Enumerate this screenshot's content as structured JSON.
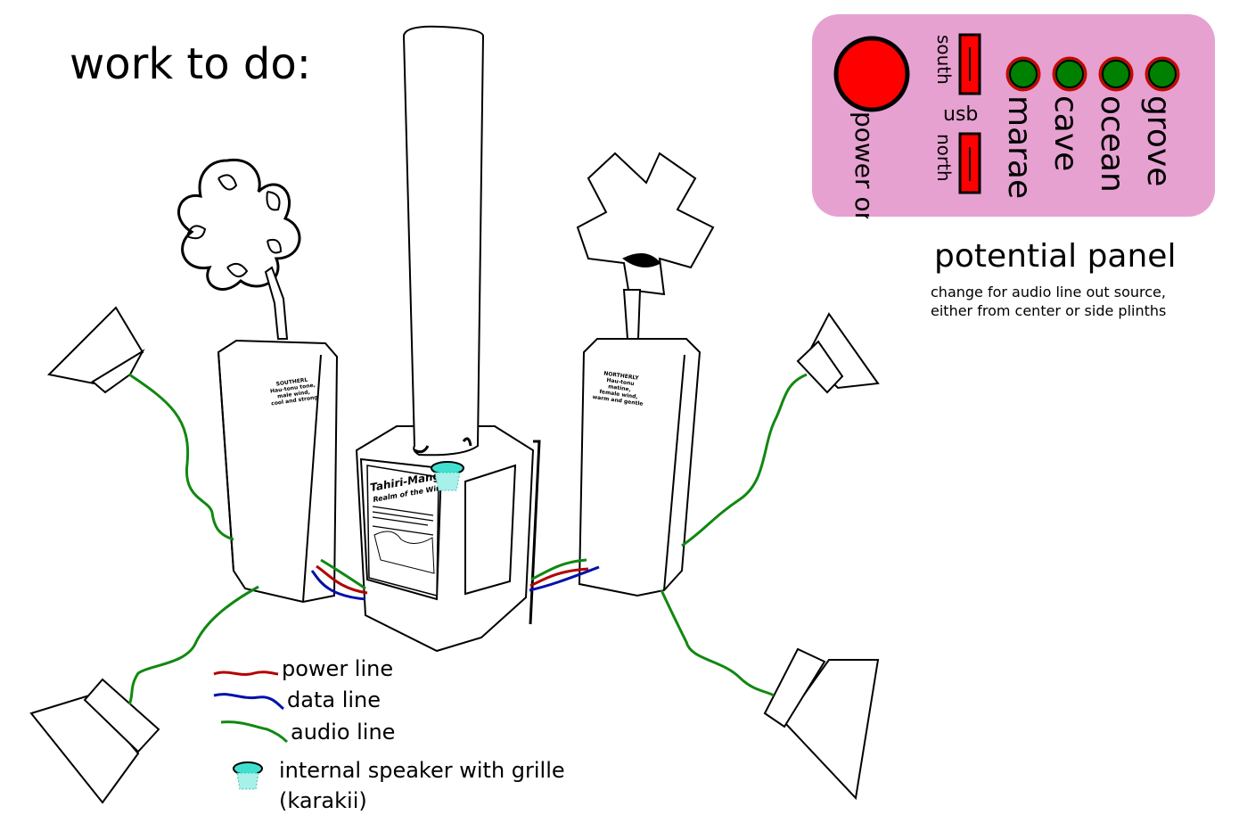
{
  "title": "work to do:",
  "panel": {
    "heading": "potential panel",
    "note": "change for audio line out source, either from center or side plinths",
    "power_label": "power on",
    "usb_label": "usb",
    "usb_ports": [
      "south",
      "north"
    ],
    "channels": [
      "marae",
      "cave",
      "ocean",
      "grove"
    ],
    "colors": {
      "background": "#e6a1d1",
      "power": "#ff0000",
      "led": "#008000",
      "led_ring": "#cc0000"
    }
  },
  "legend": {
    "power_line": "power line",
    "data_line": "data line",
    "audio_line": "audio line",
    "speaker": "internal speaker with grille",
    "speaker_sub": "(karakii)",
    "colors": {
      "power": "#b30000",
      "data": "#0011aa",
      "audio": "#118811",
      "grille": "#40e0d0"
    }
  },
  "plinths": {
    "left_plaque": [
      "SOUTHERL",
      "Hau-tonu tone,",
      "male wind,",
      "cool and strong"
    ],
    "right_plaque": [
      "NORTHERLY",
      "Hau-tonu",
      "matine,",
      "female wind,",
      "warm and gentle"
    ],
    "center_sign_title": "Tahiri-Mangaia",
    "center_sign_subtitle": "Realm of the Winds"
  }
}
